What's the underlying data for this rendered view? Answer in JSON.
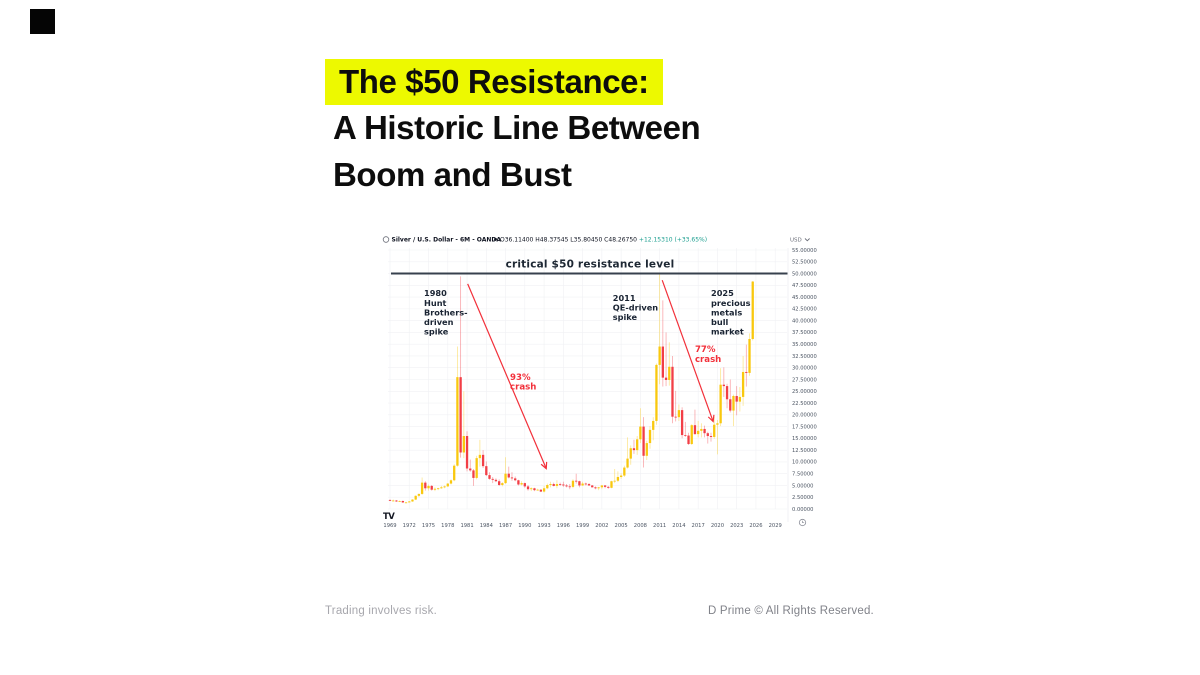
{
  "brand": {
    "logo_square_color": "#050505"
  },
  "header": {
    "highlight_text": "The $50 Resistance:",
    "line2": "A Historic Line Between",
    "line3": "Boom and Bust",
    "highlight_color": "#EDF900",
    "text_color": "#0D0D0D"
  },
  "footer": {
    "left": "Trading involves risk.",
    "right": "D Prime © All Rights Reserved."
  },
  "chart_data": {
    "type": "candlestick",
    "toolbar": {
      "symbol": "Silver / U.S. Dollar",
      "interval": "6M",
      "venue": "OANDA",
      "ohlc_text": "O36.11400 H48.37545 L35.80450 C48.26750",
      "change_text": "+12.15310 (+33.65%)",
      "currency": "USD"
    },
    "watermark_logo": "TV",
    "grid": true,
    "xlim": [
      1968.2,
      2030.5
    ],
    "ylim": [
      0,
      55
    ],
    "y_tick_step": 2.5,
    "y_ticks": [
      "55.00000",
      "52.50000",
      "50.00000",
      "47.50000",
      "45.00000",
      "42.50000",
      "40.00000",
      "37.50000",
      "35.00000",
      "32.50000",
      "30.00000",
      "27.50000",
      "25.00000",
      "22.50000",
      "20.00000",
      "17.50000",
      "15.00000",
      "12.50000",
      "10.00000",
      "7.50000",
      "5.00000",
      "2.50000",
      "0.00000"
    ],
    "x_ticks": [
      1969,
      1972,
      1975,
      1978,
      1981,
      1984,
      1987,
      1990,
      1993,
      1996,
      1999,
      2002,
      2005,
      2008,
      2011,
      2014,
      2017,
      2020,
      2023,
      2026,
      2029
    ],
    "up_color": "#F9C80E",
    "down_color": "#F23E46",
    "accent_red": "#F2303A",
    "annotation_color": "#1A2433",
    "resistance": {
      "price": 50,
      "label": "critical $50 resistance level",
      "color": "#37404D"
    },
    "annotations": [
      {
        "lines": [
          "1980",
          "Hunt",
          "Brothers-",
          "driven",
          "spike"
        ],
        "year": 1974.3,
        "price": 45.2,
        "kind": "dark"
      },
      {
        "lines": [
          "2011",
          "QE-driven",
          "spike"
        ],
        "year": 2003.7,
        "price": 44.2,
        "kind": "dark"
      },
      {
        "lines": [
          "2025",
          "precious",
          "metals",
          "bull",
          "market"
        ],
        "year": 2019.0,
        "price": 45.2,
        "kind": "dark"
      },
      {
        "lines": [
          "93%",
          "crash"
        ],
        "year": 1987.7,
        "price": 27.4,
        "kind": "red"
      },
      {
        "lines": [
          "77%",
          "crash"
        ],
        "year": 2016.5,
        "price": 33.3,
        "kind": "red"
      }
    ],
    "arrows": [
      {
        "from": {
          "year": 1981.1,
          "price": 47.8
        },
        "to": {
          "year": 1993.3,
          "price": 8.7
        }
      },
      {
        "from": {
          "year": 2011.4,
          "price": 48.6
        },
        "to": {
          "year": 2019.3,
          "price": 18.7
        }
      }
    ],
    "candles": [
      [
        1969.0,
        1.9,
        2.1,
        1.7,
        1.8
      ],
      [
        1969.5,
        1.8,
        2.0,
        1.6,
        1.8
      ],
      [
        1970.0,
        1.8,
        1.9,
        1.5,
        1.6
      ],
      [
        1970.5,
        1.6,
        1.8,
        1.5,
        1.7
      ],
      [
        1971.0,
        1.7,
        1.8,
        1.3,
        1.4
      ],
      [
        1971.5,
        1.4,
        1.5,
        1.3,
        1.4
      ],
      [
        1972.0,
        1.4,
        1.7,
        1.4,
        1.6
      ],
      [
        1972.5,
        1.6,
        2.1,
        1.5,
        2.0
      ],
      [
        1973.0,
        2.0,
        2.9,
        1.9,
        2.8
      ],
      [
        1973.5,
        2.8,
        3.3,
        2.5,
        3.2
      ],
      [
        1974.0,
        3.2,
        6.7,
        3.0,
        5.6
      ],
      [
        1974.5,
        5.6,
        5.9,
        3.9,
        4.4
      ],
      [
        1975.0,
        4.4,
        5.2,
        3.9,
        4.9
      ],
      [
        1975.5,
        4.9,
        5.1,
        3.9,
        4.1
      ],
      [
        1976.0,
        4.1,
        4.6,
        3.8,
        4.3
      ],
      [
        1976.5,
        4.3,
        4.5,
        4.0,
        4.4
      ],
      [
        1977.0,
        4.4,
        4.9,
        4.3,
        4.6
      ],
      [
        1977.5,
        4.6,
        5.0,
        4.4,
        4.8
      ],
      [
        1978.0,
        4.8,
        5.5,
        4.7,
        5.4
      ],
      [
        1978.5,
        5.4,
        6.3,
        5.2,
        6.1
      ],
      [
        1979.0,
        6.1,
        9.5,
        5.9,
        9.2
      ],
      [
        1979.5,
        9.2,
        34.5,
        9.0,
        28.0
      ],
      [
        1980.0,
        28.0,
        49.4,
        10.9,
        12.0
      ],
      [
        1980.5,
        12.0,
        25.0,
        10.8,
        15.5
      ],
      [
        1981.0,
        15.5,
        16.5,
        8.0,
        8.6
      ],
      [
        1981.5,
        8.6,
        10.5,
        7.9,
        8.2
      ],
      [
        1982.0,
        8.2,
        8.5,
        4.9,
        6.6
      ],
      [
        1982.5,
        6.6,
        11.3,
        6.3,
        10.8
      ],
      [
        1983.0,
        10.8,
        14.7,
        9.0,
        11.5
      ],
      [
        1983.5,
        11.5,
        12.5,
        8.7,
        9.1
      ],
      [
        1984.0,
        9.1,
        10.1,
        7.0,
        7.2
      ],
      [
        1984.5,
        7.2,
        7.8,
        6.2,
        6.4
      ],
      [
        1985.0,
        6.4,
        6.8,
        5.5,
        6.2
      ],
      [
        1985.5,
        6.2,
        6.5,
        5.7,
        5.9
      ],
      [
        1986.0,
        5.9,
        6.3,
        4.9,
        5.1
      ],
      [
        1986.5,
        5.1,
        5.7,
        4.8,
        5.5
      ],
      [
        1987.0,
        5.5,
        11.0,
        5.3,
        7.5
      ],
      [
        1987.5,
        7.5,
        9.0,
        6.5,
        6.7
      ],
      [
        1988.0,
        6.7,
        7.8,
        6.0,
        6.5
      ],
      [
        1988.5,
        6.5,
        6.9,
        5.9,
        6.1
      ],
      [
        1989.0,
        6.1,
        6.2,
        5.0,
        5.2
      ],
      [
        1989.5,
        5.2,
        5.9,
        5.0,
        5.5
      ],
      [
        1990.0,
        5.5,
        5.6,
        4.5,
        4.8
      ],
      [
        1990.5,
        4.8,
        5.1,
        3.9,
        4.2
      ],
      [
        1991.0,
        4.2,
        4.6,
        3.8,
        4.4
      ],
      [
        1991.5,
        4.4,
        4.5,
        3.8,
        4.0
      ],
      [
        1992.0,
        4.0,
        4.3,
        3.9,
        4.1
      ],
      [
        1992.5,
        4.1,
        4.2,
        3.6,
        3.7
      ],
      [
        1993.0,
        3.7,
        4.9,
        3.5,
        4.4
      ],
      [
        1993.5,
        4.4,
        5.4,
        4.2,
        5.1
      ],
      [
        1994.0,
        5.1,
        5.8,
        4.6,
        5.3
      ],
      [
        1994.5,
        5.3,
        5.6,
        4.8,
        4.9
      ],
      [
        1995.0,
        4.9,
        6.1,
        4.4,
        5.3
      ],
      [
        1995.5,
        5.3,
        5.6,
        4.9,
        5.2
      ],
      [
        1996.0,
        5.2,
        5.8,
        4.7,
        5.0
      ],
      [
        1996.5,
        5.0,
        5.3,
        4.6,
        4.8
      ],
      [
        1997.0,
        4.8,
        5.3,
        4.2,
        4.7
      ],
      [
        1997.5,
        4.7,
        6.3,
        4.4,
        6.0
      ],
      [
        1998.0,
        6.0,
        7.5,
        5.4,
        5.9
      ],
      [
        1998.5,
        5.9,
        6.0,
        4.6,
        5.0
      ],
      [
        1999.0,
        5.0,
        5.8,
        4.9,
        5.4
      ],
      [
        1999.5,
        5.4,
        5.6,
        5.0,
        5.3
      ],
      [
        2000.0,
        5.3,
        5.5,
        4.9,
        5.0
      ],
      [
        2000.5,
        5.0,
        5.1,
        4.6,
        4.6
      ],
      [
        2001.0,
        4.6,
        4.8,
        4.2,
        4.4
      ],
      [
        2001.5,
        4.4,
        4.7,
        4.0,
        4.6
      ],
      [
        2002.0,
        4.6,
        5.1,
        4.2,
        5.0
      ],
      [
        2002.5,
        5.0,
        5.1,
        4.4,
        4.7
      ],
      [
        2003.0,
        4.7,
        4.9,
        4.3,
        4.5
      ],
      [
        2003.5,
        4.5,
        6.0,
        4.4,
        5.9
      ],
      [
        2004.0,
        5.9,
        8.5,
        5.5,
        6.0
      ],
      [
        2004.5,
        6.0,
        8.0,
        5.7,
        6.8
      ],
      [
        2005.0,
        6.8,
        7.6,
        6.4,
        7.1
      ],
      [
        2005.5,
        7.1,
        9.2,
        6.8,
        8.8
      ],
      [
        2006.0,
        8.8,
        15.2,
        8.6,
        10.7
      ],
      [
        2006.5,
        10.7,
        13.5,
        9.4,
        12.9
      ],
      [
        2007.0,
        12.9,
        14.7,
        11.7,
        12.5
      ],
      [
        2007.5,
        12.5,
        15.5,
        11.5,
        14.8
      ],
      [
        2008.0,
        14.8,
        21.4,
        14.0,
        17.5
      ],
      [
        2008.5,
        17.5,
        19.5,
        8.8,
        11.3
      ],
      [
        2009.0,
        11.3,
        14.5,
        10.4,
        14.0
      ],
      [
        2009.5,
        14.0,
        17.6,
        12.8,
        16.8
      ],
      [
        2010.0,
        16.8,
        19.5,
        14.6,
        18.7
      ],
      [
        2010.5,
        18.7,
        30.9,
        17.9,
        30.6
      ],
      [
        2011.0,
        30.6,
        49.8,
        26.5,
        34.5
      ],
      [
        2011.5,
        34.5,
        44.3,
        26.0,
        27.9
      ],
      [
        2012.0,
        27.9,
        37.5,
        26.1,
        27.4
      ],
      [
        2012.5,
        27.4,
        35.4,
        26.2,
        30.2
      ],
      [
        2013.0,
        30.2,
        32.5,
        18.2,
        19.6
      ],
      [
        2013.5,
        19.6,
        25.1,
        18.6,
        19.5
      ],
      [
        2014.0,
        19.5,
        22.2,
        18.7,
        21.0
      ],
      [
        2014.5,
        21.0,
        21.6,
        15.0,
        15.7
      ],
      [
        2015.0,
        15.7,
        18.5,
        15.3,
        15.6
      ],
      [
        2015.5,
        15.6,
        16.2,
        13.6,
        13.8
      ],
      [
        2016.0,
        13.8,
        18.0,
        13.6,
        17.8
      ],
      [
        2016.5,
        17.8,
        21.1,
        15.8,
        15.9
      ],
      [
        2017.0,
        15.9,
        18.7,
        15.2,
        16.6
      ],
      [
        2017.5,
        16.6,
        18.2,
        15.2,
        17.0
      ],
      [
        2018.0,
        17.0,
        17.7,
        15.2,
        16.1
      ],
      [
        2018.5,
        16.1,
        16.4,
        13.9,
        15.5
      ],
      [
        2019.0,
        15.5,
        16.2,
        14.3,
        15.3
      ],
      [
        2019.5,
        15.3,
        19.6,
        14.9,
        17.9
      ],
      [
        2020.0,
        17.9,
        18.9,
        11.6,
        18.2
      ],
      [
        2020.5,
        18.2,
        29.9,
        17.6,
        26.4
      ],
      [
        2021.0,
        26.4,
        30.1,
        23.8,
        26.1
      ],
      [
        2021.5,
        26.1,
        26.6,
        21.4,
        23.3
      ],
      [
        2022.0,
        23.3,
        27.5,
        20.5,
        20.9
      ],
      [
        2022.5,
        20.9,
        24.3,
        17.6,
        24.0
      ],
      [
        2023.0,
        24.0,
        26.1,
        19.9,
        22.8
      ],
      [
        2023.5,
        22.8,
        25.9,
        20.7,
        23.8
      ],
      [
        2024.0,
        23.8,
        32.5,
        21.9,
        29.1
      ],
      [
        2024.5,
        29.1,
        34.9,
        26.0,
        28.9
      ],
      [
        2025.0,
        28.9,
        37.3,
        28.3,
        36.1
      ],
      [
        2025.5,
        36.1,
        48.4,
        35.8,
        48.3
      ]
    ]
  }
}
